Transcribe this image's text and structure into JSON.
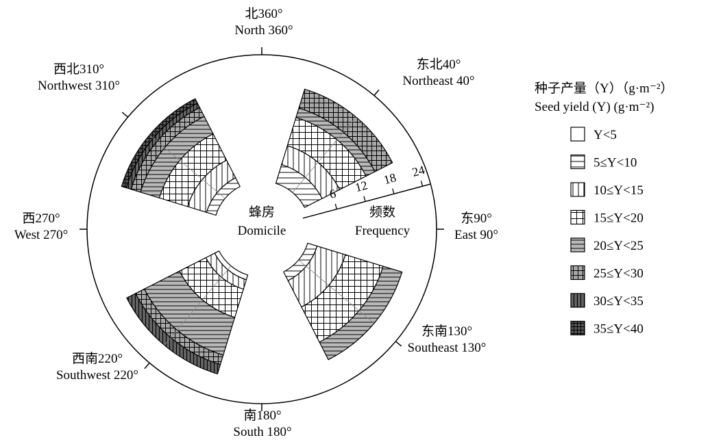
{
  "chart_data": {
    "type": "polar-stacked-bar",
    "radial_axis": {
      "title_cn": "频数",
      "title_en": "Frequency",
      "ticks": [
        6,
        12,
        18,
        24
      ]
    },
    "center_label_cn": "蜂房",
    "center_label_en": "Domicile",
    "directions": [
      {
        "cn": "北360°",
        "en": "North 360°",
        "angle": 360
      },
      {
        "cn": "东北40°",
        "en": "Northeast 40°",
        "angle": 40
      },
      {
        "cn": "东90°",
        "en": "East 90°",
        "angle": 90
      },
      {
        "cn": "东南130°",
        "en": "Southeast 130°",
        "angle": 130
      },
      {
        "cn": "南180°",
        "en": "South 180°",
        "angle": 180
      },
      {
        "cn": "西南220°",
        "en": "Southwest 220°",
        "angle": 220
      },
      {
        "cn": "西270°",
        "en": "West 270°",
        "angle": 270
      },
      {
        "cn": "西北310°",
        "en": "Northwest 310°",
        "angle": 310
      }
    ],
    "legend_title_cn": "种子产量（Y）（g·m⁻²）",
    "legend_title_en": "Seed yield (Y) (g·m⁻²)",
    "categories": [
      "Y<5",
      "5≤Y<10",
      "10≤Y<15",
      "15≤Y<20",
      "20≤Y<25",
      "25≤Y<30",
      "30≤Y<35",
      "35≤Y<40"
    ],
    "category_patterns": [
      "blank",
      "hlines",
      "vlines",
      "grid",
      "hlines-gray",
      "grid-gray",
      "vlines-dark",
      "grid-dark"
    ],
    "sectors": [
      {
        "name": "Northeast 40°",
        "angle": 40,
        "values": [
          0,
          4,
          4,
          6,
          2,
          4,
          0,
          0
        ]
      },
      {
        "name": "Southeast 130°",
        "angle": 130,
        "values": [
          0,
          2,
          6,
          8,
          4,
          0,
          0,
          0
        ]
      },
      {
        "name": "Southwest 220°",
        "angle": 220,
        "values": [
          1,
          0,
          2,
          6,
          8,
          2,
          2,
          0
        ]
      },
      {
        "name": "Northwest 310°",
        "angle": 310,
        "values": [
          0,
          2,
          4,
          6,
          4,
          2,
          1,
          1
        ]
      }
    ]
  }
}
